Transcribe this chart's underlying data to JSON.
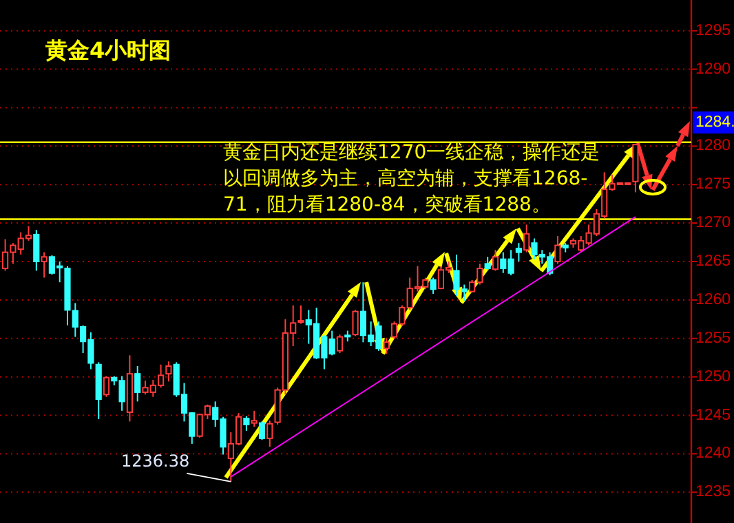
{
  "chart_data": {
    "type": "candlestick",
    "title": "黄金4小时图",
    "annotations": [
      "1236.38",
      "黄金日内还是继续1270一线企稳，操作还是以回调做多为主，高空为辅，支撑看1268-71，阻力看1280-84，突破看1288。",
      "1284."
    ],
    "categories": [
      null,
      null,
      null,
      null,
      null,
      null,
      null,
      null,
      null,
      null,
      null,
      null,
      null,
      null,
      null,
      null,
      null,
      null,
      null,
      null,
      null,
      null,
      null,
      null,
      null,
      null,
      null,
      null,
      null,
      null,
      null,
      null,
      null,
      null,
      null,
      null,
      null,
      null,
      null,
      null,
      null,
      null,
      null,
      null,
      null,
      null,
      null,
      null,
      null,
      null,
      null,
      null,
      null,
      null,
      null,
      null,
      null,
      null,
      null,
      null,
      null,
      null,
      null,
      null,
      null,
      null,
      null,
      null,
      null,
      null,
      null,
      null,
      null,
      null,
      null,
      null,
      null,
      null,
      null,
      null,
      null,
      null
    ],
    "ohlc": [
      [
        1264.1,
        1267.9,
        1263.8,
        1266.2
      ],
      [
        1266.2,
        1267.4,
        1264.7,
        1267.1
      ],
      [
        1266.6,
        1268.8,
        1265.9,
        1268.0
      ],
      [
        1268.0,
        1269.6,
        1267.7,
        1268.4
      ],
      [
        1268.5,
        1269.1,
        1263.8,
        1265.0
      ],
      [
        1265.0,
        1266.2,
        1262.9,
        1265.6
      ],
      [
        1265.6,
        1265.8,
        1263.3,
        1263.5
      ],
      [
        1264.4,
        1265.0,
        1262.3,
        1264.2
      ],
      [
        1264.1,
        1264.4,
        1256.7,
        1258.7
      ],
      [
        1258.6,
        1259.6,
        1255.2,
        1256.5
      ],
      [
        1256.5,
        1256.7,
        1253.1,
        1254.6
      ],
      [
        1254.8,
        1255.8,
        1251.0,
        1251.8
      ],
      [
        1251.6,
        1251.9,
        1244.5,
        1247.1
      ],
      [
        1247.7,
        1250.1,
        1247.4,
        1249.9
      ],
      [
        1249.9,
        1250.1,
        1248.9,
        1249.5
      ],
      [
        1249.5,
        1250.1,
        1245.6,
        1246.8
      ],
      [
        1245.4,
        1252.8,
        1244.2,
        1250.4
      ],
      [
        1250.4,
        1251.4,
        1246.8,
        1248.0
      ],
      [
        1248.0,
        1249.5,
        1247.7,
        1248.6
      ],
      [
        1248.0,
        1249.6,
        1247.4,
        1248.9
      ],
      [
        1248.9,
        1251.6,
        1248.6,
        1250.2
      ],
      [
        1250.4,
        1252.0,
        1249.4,
        1251.4
      ],
      [
        1251.6,
        1251.9,
        1247.4,
        1247.7
      ],
      [
        1247.7,
        1249.2,
        1244.2,
        1245.3
      ],
      [
        1245.3,
        1245.4,
        1241.3,
        1242.3
      ],
      [
        1242.3,
        1245.2,
        1242.1,
        1245.1
      ],
      [
        1245.1,
        1246.4,
        1244.5,
        1246.2
      ],
      [
        1246.0,
        1246.8,
        1243.5,
        1244.5
      ],
      [
        1244.5,
        1244.8,
        1239.9,
        1240.9
      ],
      [
        1239.4,
        1242.8,
        1236.38,
        1241.3
      ],
      [
        1241.3,
        1245.3,
        1241.1,
        1244.8
      ],
      [
        1244.6,
        1244.9,
        1243.0,
        1243.8
      ],
      [
        1244.0,
        1245.6,
        1243.5,
        1244.3
      ],
      [
        1244.0,
        1244.2,
        1241.8,
        1242.0
      ],
      [
        1242.0,
        1244.3,
        1240.9,
        1243.9
      ],
      [
        1244.1,
        1248.6,
        1243.8,
        1248.3
      ],
      [
        1248.3,
        1257.5,
        1247.7,
        1255.7
      ],
      [
        1255.7,
        1259.3,
        1254.0,
        1257.0
      ],
      [
        1257.2,
        1259.3,
        1256.9,
        1257.3
      ],
      [
        1257.4,
        1258.7,
        1254.3,
        1256.8
      ],
      [
        1256.9,
        1259.0,
        1252.3,
        1252.5
      ],
      [
        1255.2,
        1255.4,
        1251.0,
        1252.5
      ],
      [
        1254.9,
        1256.0,
        1252.8,
        1253.0
      ],
      [
        1253.4,
        1255.5,
        1253.1,
        1255.2
      ],
      [
        1255.4,
        1256.0,
        1254.6,
        1255.3
      ],
      [
        1255.5,
        1258.7,
        1255.3,
        1258.5
      ],
      [
        1258.5,
        1262.3,
        1254.5,
        1255.4
      ],
      [
        1255.4,
        1257.2,
        1254.0,
        1254.6
      ],
      [
        1256.6,
        1257.2,
        1253.4,
        1253.7
      ],
      [
        1253.7,
        1255.0,
        1253.0,
        1254.5
      ],
      [
        1255.2,
        1257.2,
        1254.9,
        1256.9
      ],
      [
        1256.9,
        1259.3,
        1256.6,
        1259.0
      ],
      [
        1259.0,
        1262.9,
        1258.7,
        1261.5
      ],
      [
        1261.5,
        1264.4,
        1261.1,
        1261.7
      ],
      [
        1261.7,
        1262.9,
        1261.4,
        1262.6
      ],
      [
        1262.6,
        1262.9,
        1260.8,
        1261.4
      ],
      [
        1261.5,
        1264.4,
        1261.4,
        1263.9
      ],
      [
        1263.9,
        1265.0,
        1263.5,
        1264.2
      ],
      [
        1263.8,
        1265.9,
        1260.5,
        1261.4
      ],
      [
        1261.4,
        1262.0,
        1259.9,
        1261.1
      ],
      [
        1261.1,
        1262.6,
        1261.0,
        1262.3
      ],
      [
        1262.3,
        1264.7,
        1262.0,
        1264.1
      ],
      [
        1264.7,
        1265.6,
        1263.8,
        1264.1
      ],
      [
        1264.0,
        1266.5,
        1263.8,
        1265.6
      ],
      [
        1265.3,
        1266.2,
        1263.5,
        1264.1
      ],
      [
        1265.3,
        1266.5,
        1263.2,
        1263.5
      ],
      [
        1266.7,
        1267.4,
        1265.0,
        1266.2
      ],
      [
        1266.5,
        1269.8,
        1266.2,
        1268.6
      ],
      [
        1267.4,
        1268.0,
        1265.3,
        1265.9
      ],
      [
        1265.9,
        1266.5,
        1264.7,
        1265.6
      ],
      [
        1265.6,
        1266.2,
        1263.2,
        1263.5
      ],
      [
        1265.0,
        1268.3,
        1264.7,
        1267.1
      ],
      [
        1267.1,
        1267.4,
        1266.2,
        1266.8
      ],
      [
        1267.3,
        1268.0,
        1266.8,
        1267.7
      ],
      [
        1266.5,
        1268.3,
        1266.2,
        1267.7
      ],
      [
        1267.4,
        1269.8,
        1267.1,
        1268.7
      ],
      [
        1268.6,
        1271.8,
        1268.3,
        1271.2
      ],
      [
        1270.9,
        1276.6,
        1270.6,
        1274.4
      ],
      [
        1274.4,
        1276.3,
        1274.2,
        1275.1
      ],
      [
        1275.2,
        1275.2,
        1275.2,
        1275.2
      ],
      [
        1275.2,
        1275.2,
        1275.2,
        1275.2
      ],
      [
        1275.4,
        1280.2,
        1274.0,
        1280.2
      ]
    ],
    "series": [
      {
        "type": "line",
        "color": "#ff00ff",
        "values": [
          null,
          null,
          null,
          null,
          null,
          null,
          null,
          null,
          null,
          null,
          null,
          null,
          null,
          null,
          null,
          null,
          null,
          null,
          null,
          null,
          null,
          null,
          null,
          null,
          null,
          null,
          null,
          null,
          null,
          1237.0,
          null,
          null,
          null,
          null,
          null,
          null,
          null,
          null,
          null,
          null,
          null,
          null,
          null,
          null,
          null,
          null,
          null,
          null,
          null,
          null,
          null,
          null,
          null,
          null,
          null,
          null,
          null,
          null,
          null,
          null,
          null,
          null,
          null,
          null,
          null,
          null,
          null,
          null,
          null,
          null,
          null,
          null,
          null,
          null,
          null,
          null,
          null,
          null,
          null,
          null,
          null,
          1270.8
        ]
      }
    ],
    "ylim": [
      1231,
      1299
    ],
    "yticks": [
      1235,
      1240,
      1245,
      1250,
      1255,
      1260,
      1265,
      1270,
      1275,
      1280,
      {
        "value": 1285,
        "label": null
      },
      1290,
      1295
    ],
    "grid": "y",
    "tick_labels": "y",
    "ref_lines": [
      {
        "axis": "y",
        "value": 1280.5,
        "color": "#ffff00"
      },
      {
        "axis": "y",
        "value": 1270.5,
        "color": "#ffff00"
      }
    ]
  }
}
